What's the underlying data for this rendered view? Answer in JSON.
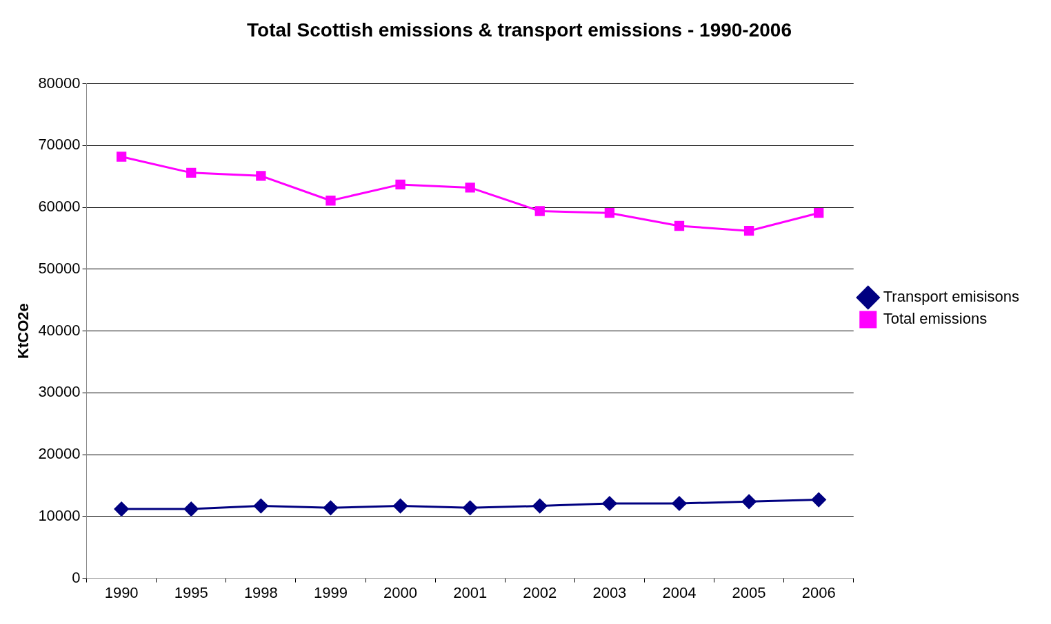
{
  "chart_data": {
    "type": "line",
    "title": "Total Scottish emissions & transport emissions - 1990-2006",
    "ylabel": "KtCO2e",
    "categories": [
      "1990",
      "1995",
      "1998",
      "1999",
      "2000",
      "2001",
      "2002",
      "2003",
      "2004",
      "2005",
      "2006"
    ],
    "series": [
      {
        "name": "Transport emisisons",
        "color": "#000080",
        "marker": "diamond",
        "values": [
          11200,
          11200,
          11700,
          11400,
          11700,
          11400,
          11700,
          12100,
          12100,
          12400,
          12700
        ]
      },
      {
        "name": "Total emissions",
        "color": "#ff00ff",
        "marker": "square",
        "values": [
          68200,
          65600,
          65100,
          61100,
          63700,
          63200,
          59400,
          59100,
          57000,
          56200,
          59100
        ]
      }
    ],
    "ylim": [
      0,
      80000
    ],
    "yticks": [
      0,
      10000,
      20000,
      30000,
      40000,
      50000,
      60000,
      70000,
      80000
    ],
    "grid": "y",
    "legend": "right",
    "line_style": "solid"
  }
}
